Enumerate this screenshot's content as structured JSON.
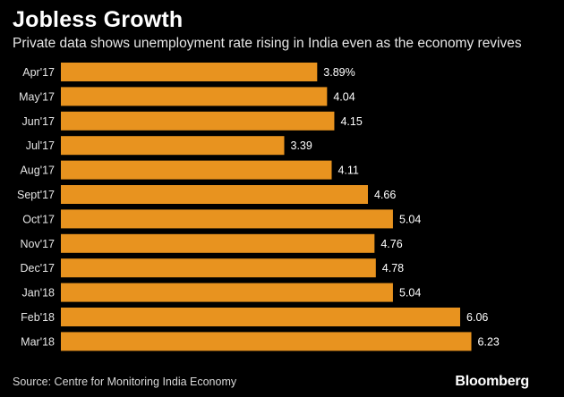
{
  "header": {
    "title": "Jobless Growth",
    "subtitle": "Private data shows unemployment rate rising in India even as the economy revives"
  },
  "footer": {
    "source": "Source: Centre for Monitoring India Economy",
    "brand": "Bloomberg"
  },
  "colors": {
    "bar": "#E8931F",
    "background": "#000000",
    "text": "#FFFFFF"
  },
  "chart_data": {
    "type": "bar",
    "orientation": "horizontal",
    "title": "Jobless Growth",
    "subtitle": "Private data shows unemployment rate rising in India even as the economy revives",
    "xlabel": "",
    "ylabel": "",
    "categories": [
      "Apr'17",
      "May'17",
      "Jun'17",
      "Jul'17",
      "Aug'17",
      "Sept'17",
      "Oct'17",
      "Nov'17",
      "Dec'17",
      "Jan'18",
      "Feb'18",
      "Mar'18"
    ],
    "values": [
      3.89,
      4.04,
      4.15,
      3.39,
      4.11,
      4.66,
      5.04,
      4.76,
      4.78,
      5.04,
      6.06,
      6.23
    ],
    "value_labels": [
      "3.89%",
      "4.04",
      "4.15",
      "3.39",
      "4.11",
      "4.66",
      "5.04",
      "4.76",
      "4.78",
      "5.04",
      "6.06",
      "6.23"
    ],
    "xlim": [
      0,
      6.7
    ],
    "grid": false,
    "legend": "none"
  }
}
